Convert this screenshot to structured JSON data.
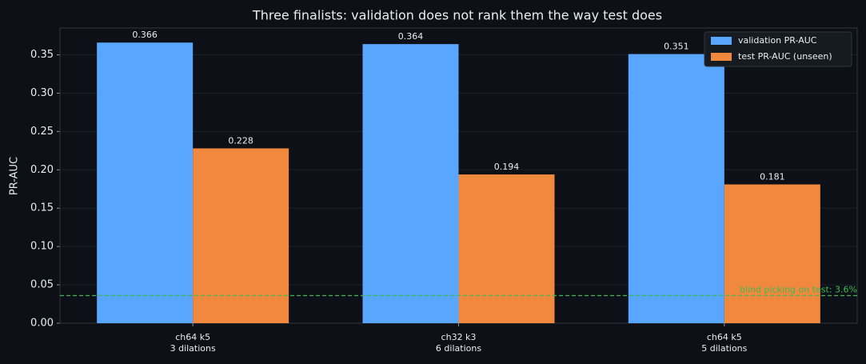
{
  "chart_data": {
    "type": "bar",
    "title": "Three finalists: validation does not rank them the way test does",
    "y_label": "PR-AUC",
    "categories": [
      "ch64 k5\n3 dilations",
      "ch32 k3\n6 dilations",
      "ch64 k5\n5 dilations"
    ],
    "series": [
      {
        "name": "validation PR-AUC",
        "color": "#58a6ff",
        "values": [
          0.366,
          0.364,
          0.351
        ]
      },
      {
        "name": "test PR-AUC (unseen)",
        "color": "#f0883e",
        "values": [
          0.228,
          0.194,
          0.181
        ]
      }
    ],
    "ylim": [
      0,
      0.385
    ],
    "yticks": [
      {
        "value": 0,
        "label": "0.00"
      },
      0.05,
      {
        "value": 0.1,
        "label": "0.10"
      },
      0.15,
      {
        "value": 0.2,
        "label": "0.20"
      },
      0.25,
      {
        "value": 0.3,
        "label": "0.30"
      },
      0.35
    ],
    "grid": true,
    "legend": "upper right",
    "reference_line": {
      "value": 0.036,
      "label": "blind picking on test: 3.6%",
      "color": "#3fb950"
    }
  }
}
